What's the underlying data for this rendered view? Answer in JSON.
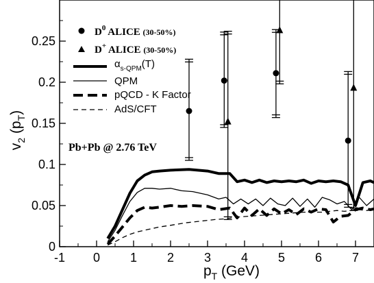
{
  "chart_data": {
    "type": "line",
    "xlabel_main": "p",
    "xlabel_sub": "T",
    "xlabel_tail": " (GeV)",
    "ylabel_main": "v",
    "ylabel_sub1": "2",
    "ylabel_mid": " (p",
    "ylabel_sub2": "T",
    "ylabel_tail": ")",
    "xlim": [
      -1,
      7.5
    ],
    "ylim": [
      0,
      0.3
    ],
    "x_ticks": [
      -1,
      0,
      1,
      2,
      3,
      4,
      5,
      6,
      7
    ],
    "x_tick_labels": [
      "-1",
      "0",
      "1",
      "2",
      "3",
      "4",
      "5",
      "6",
      "7"
    ],
    "y_ticks": [
      0,
      0.05,
      0.1,
      0.15,
      0.2,
      0.25
    ],
    "y_tick_labels": [
      "0",
      "0.05",
      "0.1",
      "0.15",
      "0.2",
      "0.25"
    ],
    "grid": false,
    "legend_position": "top-left",
    "annotation": "Pb+Pb @ 2.76 TeV",
    "legend": {
      "d0_main": "D",
      "d0_sup": "0",
      "d0_tail": " ALICE ",
      "d0_small": "(30-50%)",
      "dplus_main": "D",
      "dplus_sup": "+",
      "dplus_tail": " ALICE ",
      "dplus_small": "(30-50%)",
      "aqpm_main": "α",
      "aqpm_sub": "s-QPM",
      "aqpm_tail": "(T)",
      "qpm": "QPM",
      "pqcd": "pQCD - K Factor",
      "ads": "AdS/CFT"
    },
    "points_series": [
      {
        "name": "D0 ALICE (30-50%)",
        "marker": "circle",
        "points": [
          {
            "x": 2.5,
            "y": 0.165,
            "ylo": 0.105,
            "yhi": 0.228
          },
          {
            "x": 3.45,
            "y": 0.202,
            "ylo": 0.145,
            "yhi": 0.261
          },
          {
            "x": 4.85,
            "y": 0.211,
            "ylo": 0.157,
            "yhi": 0.264
          },
          {
            "x": 6.8,
            "y": 0.129,
            "ylo": 0.048,
            "yhi": 0.213
          }
        ]
      },
      {
        "name": "D+ ALICE (30-50%)",
        "marker": "triangle",
        "points": [
          {
            "x": 3.55,
            "y": 0.152,
            "ylo": 0.033,
            "yhi": 0.262
          },
          {
            "x": 4.95,
            "y": 0.263,
            "ylo": 0.198,
            "yhi": 0.33
          },
          {
            "x": 6.95,
            "y": 0.193,
            "ylo": 0.044,
            "yhi": 0.33
          }
        ]
      }
    ],
    "line_series": [
      {
        "name": "αs-QPM(T)",
        "style": "thick-solid",
        "x": [
          0.3,
          0.5,
          0.7,
          0.9,
          1.1,
          1.3,
          1.5,
          1.7,
          2.0,
          2.5,
          3.0,
          3.3,
          3.6,
          3.8,
          4.0,
          4.2,
          4.4,
          4.6,
          4.8,
          5.0,
          5.2,
          5.4,
          5.6,
          5.8,
          6.0,
          6.2,
          6.4,
          6.6,
          6.8,
          7.0,
          7.2,
          7.4,
          7.5
        ],
        "y": [
          0.01,
          0.025,
          0.045,
          0.065,
          0.08,
          0.087,
          0.091,
          0.092,
          0.093,
          0.094,
          0.092,
          0.089,
          0.089,
          0.079,
          0.081,
          0.078,
          0.081,
          0.078,
          0.08,
          0.079,
          0.08,
          0.079,
          0.081,
          0.077,
          0.08,
          0.079,
          0.08,
          0.079,
          0.075,
          0.05,
          0.078,
          0.08,
          0.078
        ]
      },
      {
        "name": "QPM",
        "style": "thin-solid",
        "x": [
          0.3,
          0.5,
          0.7,
          0.9,
          1.1,
          1.3,
          1.5,
          1.7,
          2.0,
          2.3,
          2.6,
          3.0,
          3.3,
          3.5,
          3.7,
          3.9,
          4.1,
          4.3,
          4.5,
          4.7,
          4.9,
          5.1,
          5.3,
          5.5,
          5.7,
          5.9,
          6.1,
          6.3,
          6.5,
          6.7,
          6.9,
          7.1,
          7.3,
          7.5
        ],
        "y": [
          0.006,
          0.02,
          0.038,
          0.055,
          0.066,
          0.071,
          0.071,
          0.07,
          0.071,
          0.068,
          0.067,
          0.063,
          0.058,
          0.06,
          0.052,
          0.058,
          0.052,
          0.058,
          0.05,
          0.059,
          0.052,
          0.05,
          0.059,
          0.049,
          0.058,
          0.048,
          0.06,
          0.057,
          0.052,
          0.055,
          0.045,
          0.06,
          0.05,
          0.058
        ]
      },
      {
        "name": "pQCD - K Factor",
        "style": "thick-dashed",
        "x": [
          0.3,
          0.5,
          0.7,
          0.9,
          1.1,
          1.3,
          1.5,
          1.7,
          2.0,
          2.3,
          2.6,
          3.0,
          3.3,
          3.6,
          3.8,
          4.0,
          4.2,
          4.4,
          4.6,
          4.8,
          5.0,
          5.2,
          5.4,
          5.6,
          5.8,
          6.0,
          6.2,
          6.4,
          6.6,
          6.8,
          7.0,
          7.2,
          7.4,
          7.5
        ],
        "y": [
          0.003,
          0.013,
          0.024,
          0.035,
          0.044,
          0.048,
          0.047,
          0.048,
          0.05,
          0.049,
          0.05,
          0.049,
          0.045,
          0.047,
          0.035,
          0.047,
          0.038,
          0.046,
          0.038,
          0.046,
          0.04,
          0.045,
          0.039,
          0.046,
          0.042,
          0.046,
          0.045,
          0.03,
          0.037,
          0.038,
          0.045,
          0.047,
          0.045,
          0.046
        ]
      },
      {
        "name": "AdS/CFT",
        "style": "thin-dashed",
        "x": [
          0.3,
          0.5,
          0.7,
          0.9,
          1.1,
          1.4,
          1.7,
          2.0,
          2.4,
          2.8,
          3.2,
          3.5,
          3.8,
          4.1,
          4.4,
          4.7,
          5.0,
          5.3,
          5.6,
          5.9,
          6.1,
          6.3,
          6.5,
          6.7,
          6.9,
          7.1,
          7.3,
          7.5
        ],
        "y": [
          0.002,
          0.006,
          0.011,
          0.015,
          0.018,
          0.021,
          0.024,
          0.026,
          0.029,
          0.031,
          0.033,
          0.034,
          0.036,
          0.037,
          0.038,
          0.039,
          0.04,
          0.041,
          0.042,
          0.042,
          0.042,
          0.043,
          0.044,
          0.043,
          0.044,
          0.045,
          0.044,
          0.045
        ]
      }
    ]
  }
}
